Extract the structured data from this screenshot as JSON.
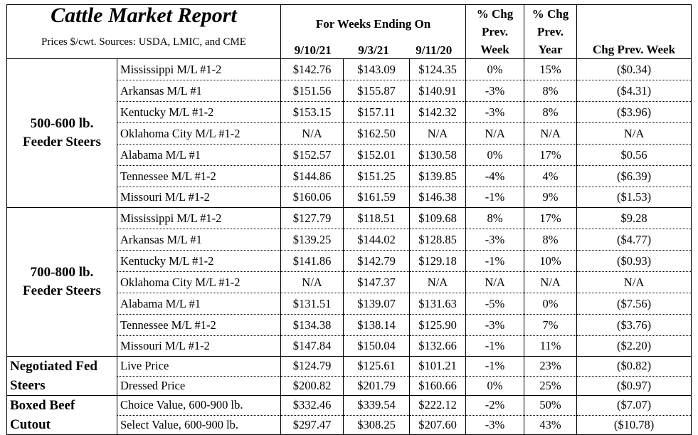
{
  "header": {
    "title": "Cattle Market Report",
    "subtitle": "Prices $/cwt. Sources: USDA, LMIC, and CME",
    "weeks_ending": "For Weeks Ending On",
    "dates": [
      "9/10/21",
      "9/3/21",
      "9/11/20"
    ],
    "pct_prev_week": [
      "% Chg",
      "Prev.",
      "Week"
    ],
    "pct_prev_year": [
      "% Chg",
      "Prev.",
      "Year"
    ],
    "chg_prev_week": "Chg Prev. Week"
  },
  "groups": [
    {
      "label_lines": [
        "500-600 lb.",
        "Feeder Steers"
      ],
      "rows": [
        [
          "Mississippi M/L #1-2",
          "$142.76",
          "$143.09",
          "$124.35",
          "0%",
          "15%",
          "($0.34)"
        ],
        [
          "Arkansas M/L #1",
          "$151.56",
          "$155.87",
          "$140.91",
          "-3%",
          "8%",
          "($4.31)"
        ],
        [
          "Kentucky M/L #1-2",
          "$153.15",
          "$157.11",
          "$142.32",
          "-3%",
          "8%",
          "($3.96)"
        ],
        [
          "Oklahoma City M/L #1-2",
          "N/A",
          "$162.50",
          "N/A",
          "N/A",
          "N/A",
          "N/A"
        ],
        [
          "Alabama M/L #1",
          "$152.57",
          "$152.01",
          "$130.58",
          "0%",
          "17%",
          "$0.56"
        ],
        [
          "Tennessee M/L #1-2",
          "$144.86",
          "$151.25",
          "$139.85",
          "-4%",
          "4%",
          "($6.39)"
        ],
        [
          "Missouri M/L #1-2",
          "$160.06",
          "$161.59",
          "$146.38",
          "-1%",
          "9%",
          "($1.53)"
        ]
      ]
    },
    {
      "label_lines": [
        "700-800 lb.",
        "Feeder Steers"
      ],
      "rows": [
        [
          "Mississippi M/L #1-2",
          "$127.79",
          "$118.51",
          "$109.68",
          "8%",
          "17%",
          "$9.28"
        ],
        [
          "Arkansas M/L #1",
          "$139.25",
          "$144.02",
          "$128.85",
          "-3%",
          "8%",
          "($4.77)"
        ],
        [
          "Kentucky M/L #1-2",
          "$141.86",
          "$142.79",
          "$129.18",
          "-1%",
          "10%",
          "($0.93)"
        ],
        [
          "Oklahoma City M/L #1-2",
          "N/A",
          "$147.37",
          "N/A",
          "N/A",
          "N/A",
          "N/A"
        ],
        [
          "Alabama M/L #1",
          "$131.51",
          "$139.07",
          "$131.63",
          "-5%",
          "0%",
          "($7.56)"
        ],
        [
          "Tennessee M/L #1-2",
          "$134.38",
          "$138.14",
          "$125.90",
          "-3%",
          "7%",
          "($3.76)"
        ],
        [
          "Missouri M/L #1-2",
          "$147.84",
          "$150.04",
          "$132.66",
          "-1%",
          "11%",
          "($2.20)"
        ]
      ]
    },
    {
      "label_lines": [
        "Negotiated Fed",
        "Steers"
      ],
      "rows": [
        [
          "Live Price",
          "$124.79",
          "$125.61",
          "$101.21",
          "-1%",
          "23%",
          "($0.82)"
        ],
        [
          "Dressed Price",
          "$200.82",
          "$201.79",
          "$160.66",
          "0%",
          "25%",
          "($0.97)"
        ]
      ]
    },
    {
      "label_lines": [
        "Boxed Beef",
        "Cutout"
      ],
      "rows": [
        [
          "Choice Value, 600-900 lb.",
          "$332.46",
          "$339.54",
          "$222.12",
          "-2%",
          "50%",
          "($7.07)"
        ],
        [
          "Select Value, 600-900 lb.",
          "$297.47",
          "$308.25",
          "$207.60",
          "-3%",
          "43%",
          "($10.78)"
        ]
      ]
    }
  ]
}
